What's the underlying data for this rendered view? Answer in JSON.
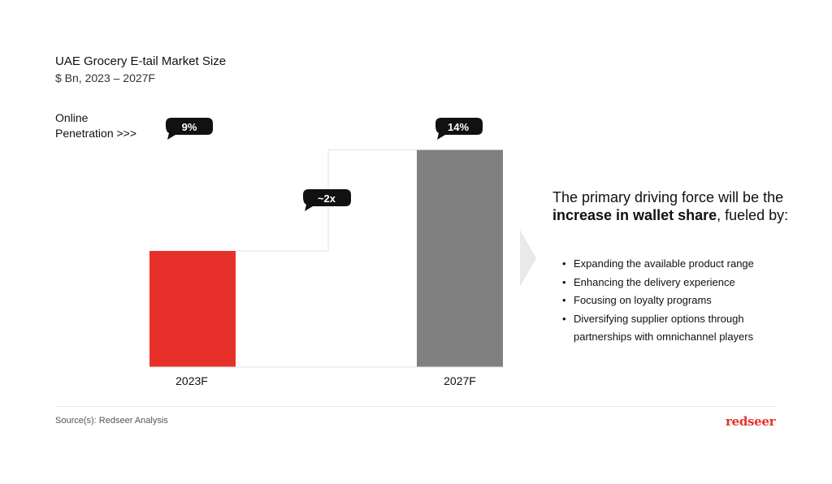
{
  "header": {
    "title": "UAE Grocery E-tail Market Size",
    "subtitle": "$ Bn, 2023 – 2027F"
  },
  "penetration_label": {
    "line1": "Online",
    "line2": "Penetration >>>"
  },
  "chart_data": {
    "type": "bar",
    "title": "UAE Grocery E-tail Market Size",
    "subtitle": "$ Bn, 2023 – 2027F",
    "categories": [
      "2023F",
      "2027F"
    ],
    "values": [
      1,
      1.87
    ],
    "bar_colors": [
      "#e8302a",
      "#808080"
    ],
    "online_penetration": [
      "9%",
      "14%"
    ],
    "growth_annotation": "~2x",
    "ylim": [
      0,
      2
    ],
    "grid": false
  },
  "message": {
    "part1": "The primary driving force will be the ",
    "bold": "increase in wallet share",
    "part2": ", fueled by:"
  },
  "bullets": [
    "Expanding the available product range",
    "Enhancing the delivery experience",
    "Focusing on loyalty programs",
    "Diversifying supplier options through partnerships with omnichannel players"
  ],
  "footer": {
    "source": "Source(s): Redseer Analysis",
    "logo": "redseer"
  },
  "colors": {
    "accent": "#e8302a",
    "secondary": "#808080",
    "bubble": "#111111",
    "arrow": "#e9e9e9"
  },
  "icons": {
    "arrow": "chevron-right-icon"
  }
}
